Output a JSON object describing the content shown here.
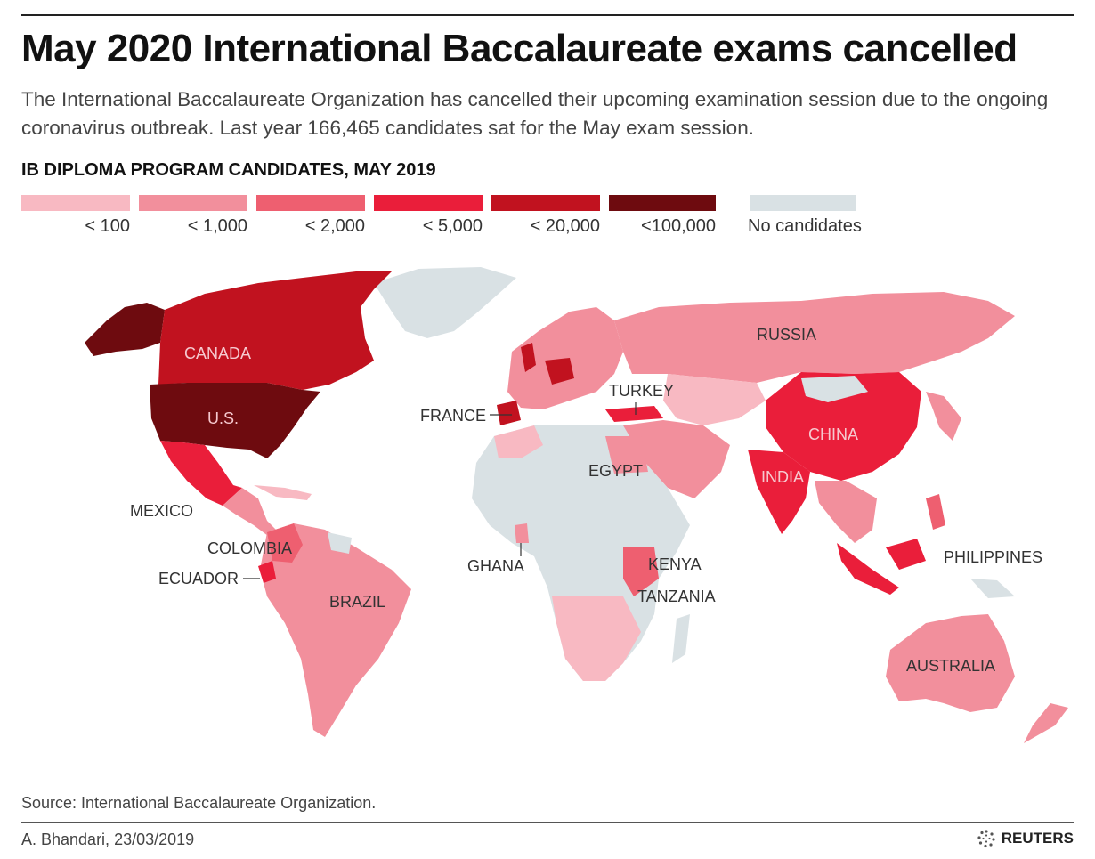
{
  "header": {
    "title": "May 2020 International Baccalaureate exams cancelled",
    "subtitle": "The International Baccalaureate Organization has cancelled their upcoming examination session due to the ongoing coronavirus outbreak. Last year 166,465 candidates sat for the May exam session."
  },
  "legend": {
    "title": "IB DIPLOMA PROGRAM CANDIDATES, MAY 2019",
    "items": [
      {
        "label": "< 100",
        "color": "#f8b9c2"
      },
      {
        "label": "< 1,000",
        "color": "#f28f9c"
      },
      {
        "label": "< 2,000",
        "color": "#ee5f70"
      },
      {
        "label": "< 5,000",
        "color": "#ea1e3a"
      },
      {
        "label": "< 20,000",
        "color": "#c1121f"
      },
      {
        "label": "<100,000",
        "color": "#6e0b0f"
      },
      {
        "label": "No candidates",
        "color": "#d9e1e4"
      }
    ]
  },
  "map_labels": {
    "canada": "CANADA",
    "us": "U.S.",
    "mexico": "MEXICO",
    "colombia": "COLOMBIA",
    "ecuador": "ECUADOR",
    "brazil": "BRAZIL",
    "france": "FRANCE",
    "turkey": "TURKEY",
    "egypt": "EGYPT",
    "ghana": "GHANA",
    "kenya": "KENYA",
    "tanzania": "TANZANIA",
    "russia": "RUSSIA",
    "china": "CHINA",
    "india": "INDIA",
    "philippines": "PHILIPPINES",
    "australia": "AUSTRALIA"
  },
  "footer": {
    "source": "Source: International Baccalaureate Organization.",
    "credit": "A. Bhandari, 23/03/2019",
    "brand": "REUTERS"
  }
}
